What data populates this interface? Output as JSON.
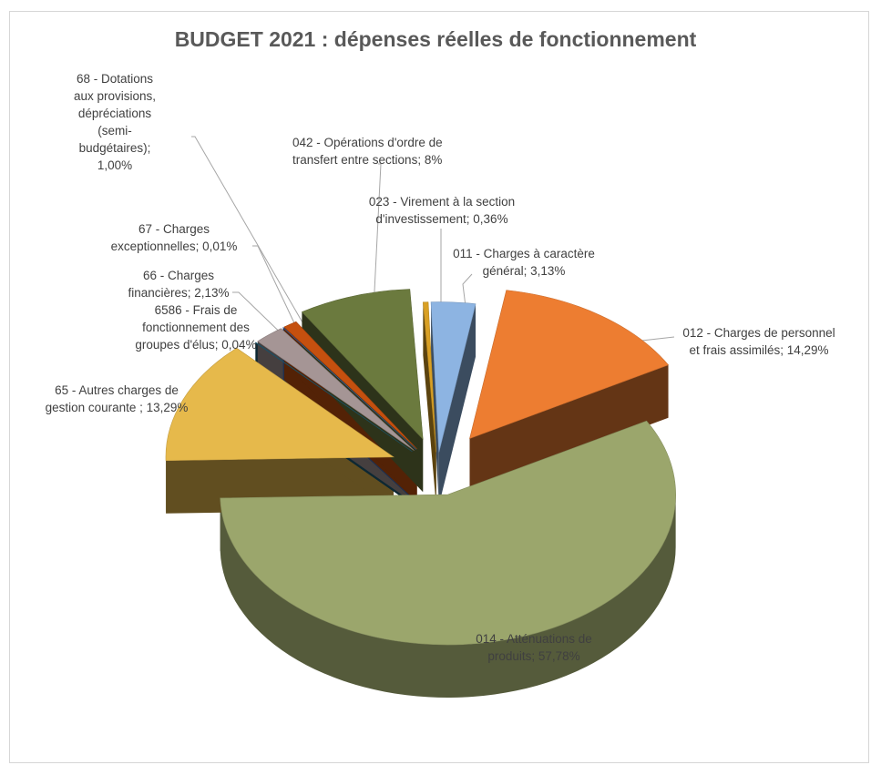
{
  "chart_data": {
    "type": "pie",
    "style": "3d-exploded",
    "title": "BUDGET 2021 : dépenses réelles de fonctionnement",
    "slices": [
      {
        "code": "011",
        "label_lines": [
          "011 - Charges à caractère",
          "général; 3,13%"
        ],
        "value": 3.13,
        "color": "#8db4e2"
      },
      {
        "code": "012",
        "label_lines": [
          "012 - Charges de personnel",
          "et frais assimilés; 14,29%"
        ],
        "value": 14.29,
        "color": "#ed7d31"
      },
      {
        "code": "014",
        "label_lines": [
          "014 - Atténuations de",
          "produits; 57,78%"
        ],
        "value": 57.78,
        "color": "#9ba66c"
      },
      {
        "code": "65",
        "label_lines": [
          "65 - Autres charges de",
          "gestion courante ; 13,29%"
        ],
        "value": 13.29,
        "color": "#e6b94b"
      },
      {
        "code": "6586",
        "label_lines": [
          "6586 - Frais de",
          "fonctionnement des",
          "groupes d'élus; 0,04%"
        ],
        "value": 0.04,
        "color": "#1f5f7a"
      },
      {
        "code": "66",
        "label_lines": [
          "66 - Charges",
          "financières; 2,13%"
        ],
        "value": 2.13,
        "color": "#a59595"
      },
      {
        "code": "67",
        "label_lines": [
          "67 - Charges",
          "exceptionnelles; 0,01%"
        ],
        "value": 0.01,
        "color": "#4472c4"
      },
      {
        "code": "68",
        "label_lines": [
          "68 - Dotations",
          "aux provisions,",
          "dépréciations",
          "(semi-",
          "budgétaires);",
          "1,00%"
        ],
        "value": 1.0,
        "color": "#c5500f"
      },
      {
        "code": "042",
        "label_lines": [
          "042 - Opérations d'ordre de",
          "transfert entre sections; 8%"
        ],
        "value": 8.0,
        "color": "#6b7a3e"
      },
      {
        "code": "023",
        "label_lines": [
          "023 - Virement à la section",
          "d'investissement; 0,36%"
        ],
        "value": 0.36,
        "color": "#d9a024"
      }
    ]
  }
}
